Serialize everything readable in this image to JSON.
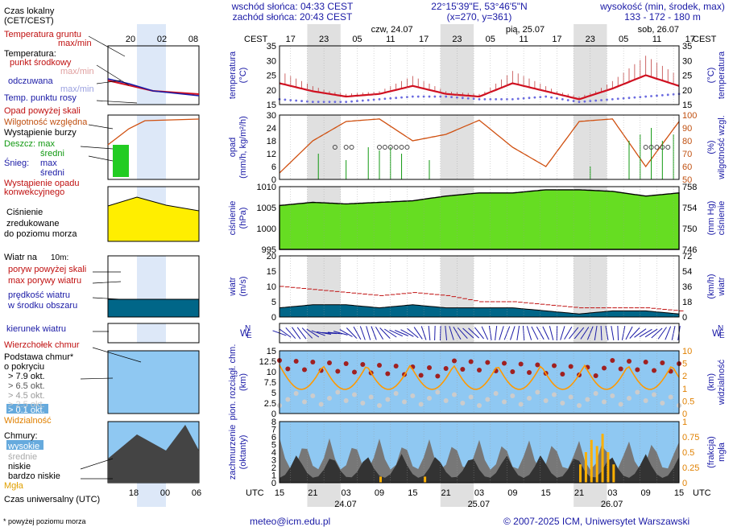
{
  "header": {
    "sun_rise": "wschód słońca: 04:33 CEST",
    "sun_set": "zachód słońca: 20:43 CEST",
    "coords": "22°15'39\"E, 53°46'5\"N",
    "grid": "(x=270, y=361)",
    "elev_title": "wysokość (min, środek, max)",
    "elev_values": "133 - 172 - 180 m"
  },
  "legend": {
    "czas_lokalny": "Czas lokalny",
    "cet_cest": "(CET/CEST)",
    "gruntu": "Temperatura gruntu",
    "gruntu2": "max/min",
    "temperatura": "Temperatura:",
    "punkt": "punkt środkowy",
    "maxmin": "max/min",
    "odczuwana": "odczuwana",
    "maxmin2": "max/min",
    "rosy": "Temp. punktu rosy",
    "opad_skali": "Opad powyżej skali",
    "wilg": "Wilgotność względna",
    "burza": "Wystąpienie burzy",
    "deszcz": "Deszcz: max",
    "sredni1": "średni",
    "snieg": "Śnieg:",
    "max2": "max",
    "sredni2": "średni",
    "wyst_opadu": "Wystąpienie opadu",
    "konwekcyjnego": "konwekcyjnego",
    "cisnienie1": "Ciśnienie",
    "cisnienie2": "zredukowane",
    "cisnienie3": "do poziomu morza",
    "wiatr_na": "Wiatr na",
    "wiatr_h": "10m:",
    "poryw_skali": "poryw powyżej skali",
    "max_porywy": "max porywy wiatru",
    "predkosc": "prędkość wiatru",
    "w_srodku": "w środku obszaru",
    "kierunek": "kierunek wiatru",
    "wierzcholek": "Wierzchołek chmur",
    "podstawa": "Podstawa chmur*",
    "o_pokryciu": "o pokryciu",
    "okt1": "> 7.9 okt.",
    "okt2": "> 6.5 okt.",
    "okt3": "> 4.5 okt.",
    "okt4": "> 2.5 okt.",
    "okt5": "> 0.1 okt.",
    "widzialnosc": "Widzialność",
    "chmury": "Chmury:",
    "wysokie": "wysokie",
    "srednie": "średnie",
    "niskie": "niskie",
    "bardzo_niskie": "bardzo niskie",
    "mgla": "Mgła",
    "utc_label": "Czas uniwersalny (UTC)",
    "powyzej": "* powyżej poziomu morza"
  },
  "axes": {
    "cest": "CEST",
    "utc": "UTC",
    "temp_l1": "temperatura",
    "temp_l2": "(°C)",
    "temp_r1": "(°C)",
    "temp_r2": "temperatura",
    "opad_l1": "opad",
    "opad_l2": "(mm/h, kg/m²/h)",
    "opad_r1": "(%)",
    "opad_r2": "wilgotność wzgl.",
    "cis_l1": "ciśnienie",
    "cis_l2": "(hPa)",
    "cis_r1": "(mm Hg)",
    "cis_r2": "ciśnienie",
    "wiatr_l1": "wiatr",
    "wiatr_l2": "(m/s)",
    "wiatr_r1": "(km/h)",
    "wiatr_r2": "wiatr",
    "chm_l1": "pion. rozciągł. chm.",
    "chm_l2": "(km)",
    "chm_r1": "(km)",
    "chm_r2": "widzialność",
    "zach_l1": "zachmurzenie",
    "zach_l2": "(oktanty)",
    "zach_r1": "(frakcja)",
    "zach_r2": "mgła",
    "compass": [
      "N",
      "W",
      "S",
      "E"
    ],
    "cest_ticks": [
      "17",
      "23",
      "05",
      "11",
      "17",
      "23",
      "05",
      "11",
      "17",
      "23",
      "05",
      "11",
      "17"
    ],
    "utc_ticks": [
      "15",
      "21",
      "03",
      "09",
      "15",
      "21",
      "03",
      "09",
      "15",
      "21",
      "03",
      "09",
      "15"
    ],
    "days_top": [
      "czw, 24.07",
      "pią, 25.07",
      "sob, 26.07"
    ],
    "days_bottom": [
      "24.07",
      "25.07",
      "26.07"
    ],
    "legend_cest_ticks": [
      "20",
      "02",
      "08"
    ],
    "legend_utc_ticks": [
      "18",
      "00",
      "06"
    ]
  },
  "footer": {
    "email": "meteo@icm.edu.pl",
    "copyright": "© 2007-2025 ICM, Uniwersytet Warszawski"
  },
  "colors": {
    "temp_line": "#d01020",
    "dew_dots": "#6a6ae0",
    "humidity": "#d05010",
    "pressure_fill": "#66dd22",
    "wind_fill": "#006688",
    "gust": "#c01010",
    "vis_line": "#ff9900",
    "fog_bars": "#ffb000",
    "cloud_bg": "#8fc8f2",
    "night_band": "#e0e0e0"
  },
  "chart_data": [
    {
      "type": "line",
      "title": "temperatura",
      "ylabel": "(°C)",
      "ylim": [
        13,
        35
      ],
      "x": [
        0,
        6,
        12,
        18,
        24,
        30,
        36,
        42,
        48,
        54,
        60,
        66,
        72
      ],
      "series": [
        {
          "name": "punkt środkowy",
          "values": [
            21,
            18,
            16,
            17,
            20,
            17,
            16,
            21,
            18,
            15,
            19,
            24,
            20
          ]
        },
        {
          "name": "Temp. punktu rosy",
          "values": [
            15,
            14,
            14,
            15,
            16,
            16,
            15,
            15,
            16,
            14,
            15,
            16,
            17
          ]
        }
      ]
    },
    {
      "type": "line",
      "title": "opad / wilgotność wzgl.",
      "ylim": [
        0,
        30
      ],
      "x": [
        0,
        6,
        12,
        18,
        24,
        30,
        36,
        42,
        48,
        54,
        60,
        66,
        72
      ],
      "series": [
        {
          "name": "Wilgotność względna",
          "values": [
            55,
            80,
            95,
            97,
            80,
            85,
            96,
            75,
            60,
            95,
            97,
            60,
            95
          ]
        }
      ]
    },
    {
      "type": "area",
      "title": "ciśnienie",
      "ylabel": "(hPa)",
      "ylim": [
        995,
        1015
      ],
      "x": [
        0,
        6,
        12,
        18,
        24,
        30,
        36,
        42,
        48,
        54,
        60,
        66,
        72
      ],
      "series": [
        {
          "name": "Ciśnienie",
          "values": [
            1009,
            1010,
            1009.5,
            1010,
            1010.5,
            1012,
            1013,
            1013,
            1014,
            1014,
            1013.5,
            1012,
            1013
          ]
        }
      ]
    },
    {
      "type": "area",
      "title": "wiatr",
      "ylabel": "(m/s)",
      "ylim": [
        0,
        20
      ],
      "x": [
        0,
        6,
        12,
        18,
        24,
        30,
        36,
        42,
        48,
        54,
        60,
        66,
        72
      ],
      "series": [
        {
          "name": "prędkość wiatru",
          "values": [
            3,
            4,
            4,
            3,
            4,
            3,
            3,
            3,
            2,
            1,
            2,
            2,
            1
          ]
        },
        {
          "name": "max porywy wiatru",
          "values": [
            10,
            9,
            8,
            7,
            8,
            7,
            5,
            5,
            4,
            3,
            3,
            3,
            2
          ]
        }
      ]
    }
  ]
}
